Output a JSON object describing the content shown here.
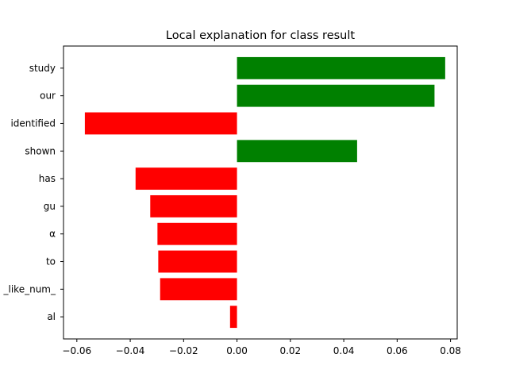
{
  "chart_data": {
    "type": "bar",
    "orientation": "horizontal",
    "title": "Local explanation for class result",
    "xlabel": "",
    "ylabel": "",
    "xlim": [
      -0.065,
      0.0825
    ],
    "xticks": [
      -0.06,
      -0.04,
      -0.02,
      0.0,
      0.02,
      0.04,
      0.06,
      0.08
    ],
    "xtick_labels": [
      "−0.06",
      "−0.04",
      "−0.02",
      "0.00",
      "0.02",
      "0.04",
      "0.06",
      "0.08"
    ],
    "categories": [
      "study",
      "our",
      "identified",
      "shown",
      "has",
      "gu",
      "α",
      "to",
      "_like_num_",
      "al"
    ],
    "values": [
      0.078,
      0.074,
      -0.057,
      0.045,
      -0.038,
      -0.0325,
      -0.0298,
      -0.0295,
      -0.0288,
      -0.0026
    ],
    "colors": {
      "positive": "#008000",
      "negative": "#ff0000"
    },
    "grid": false
  }
}
